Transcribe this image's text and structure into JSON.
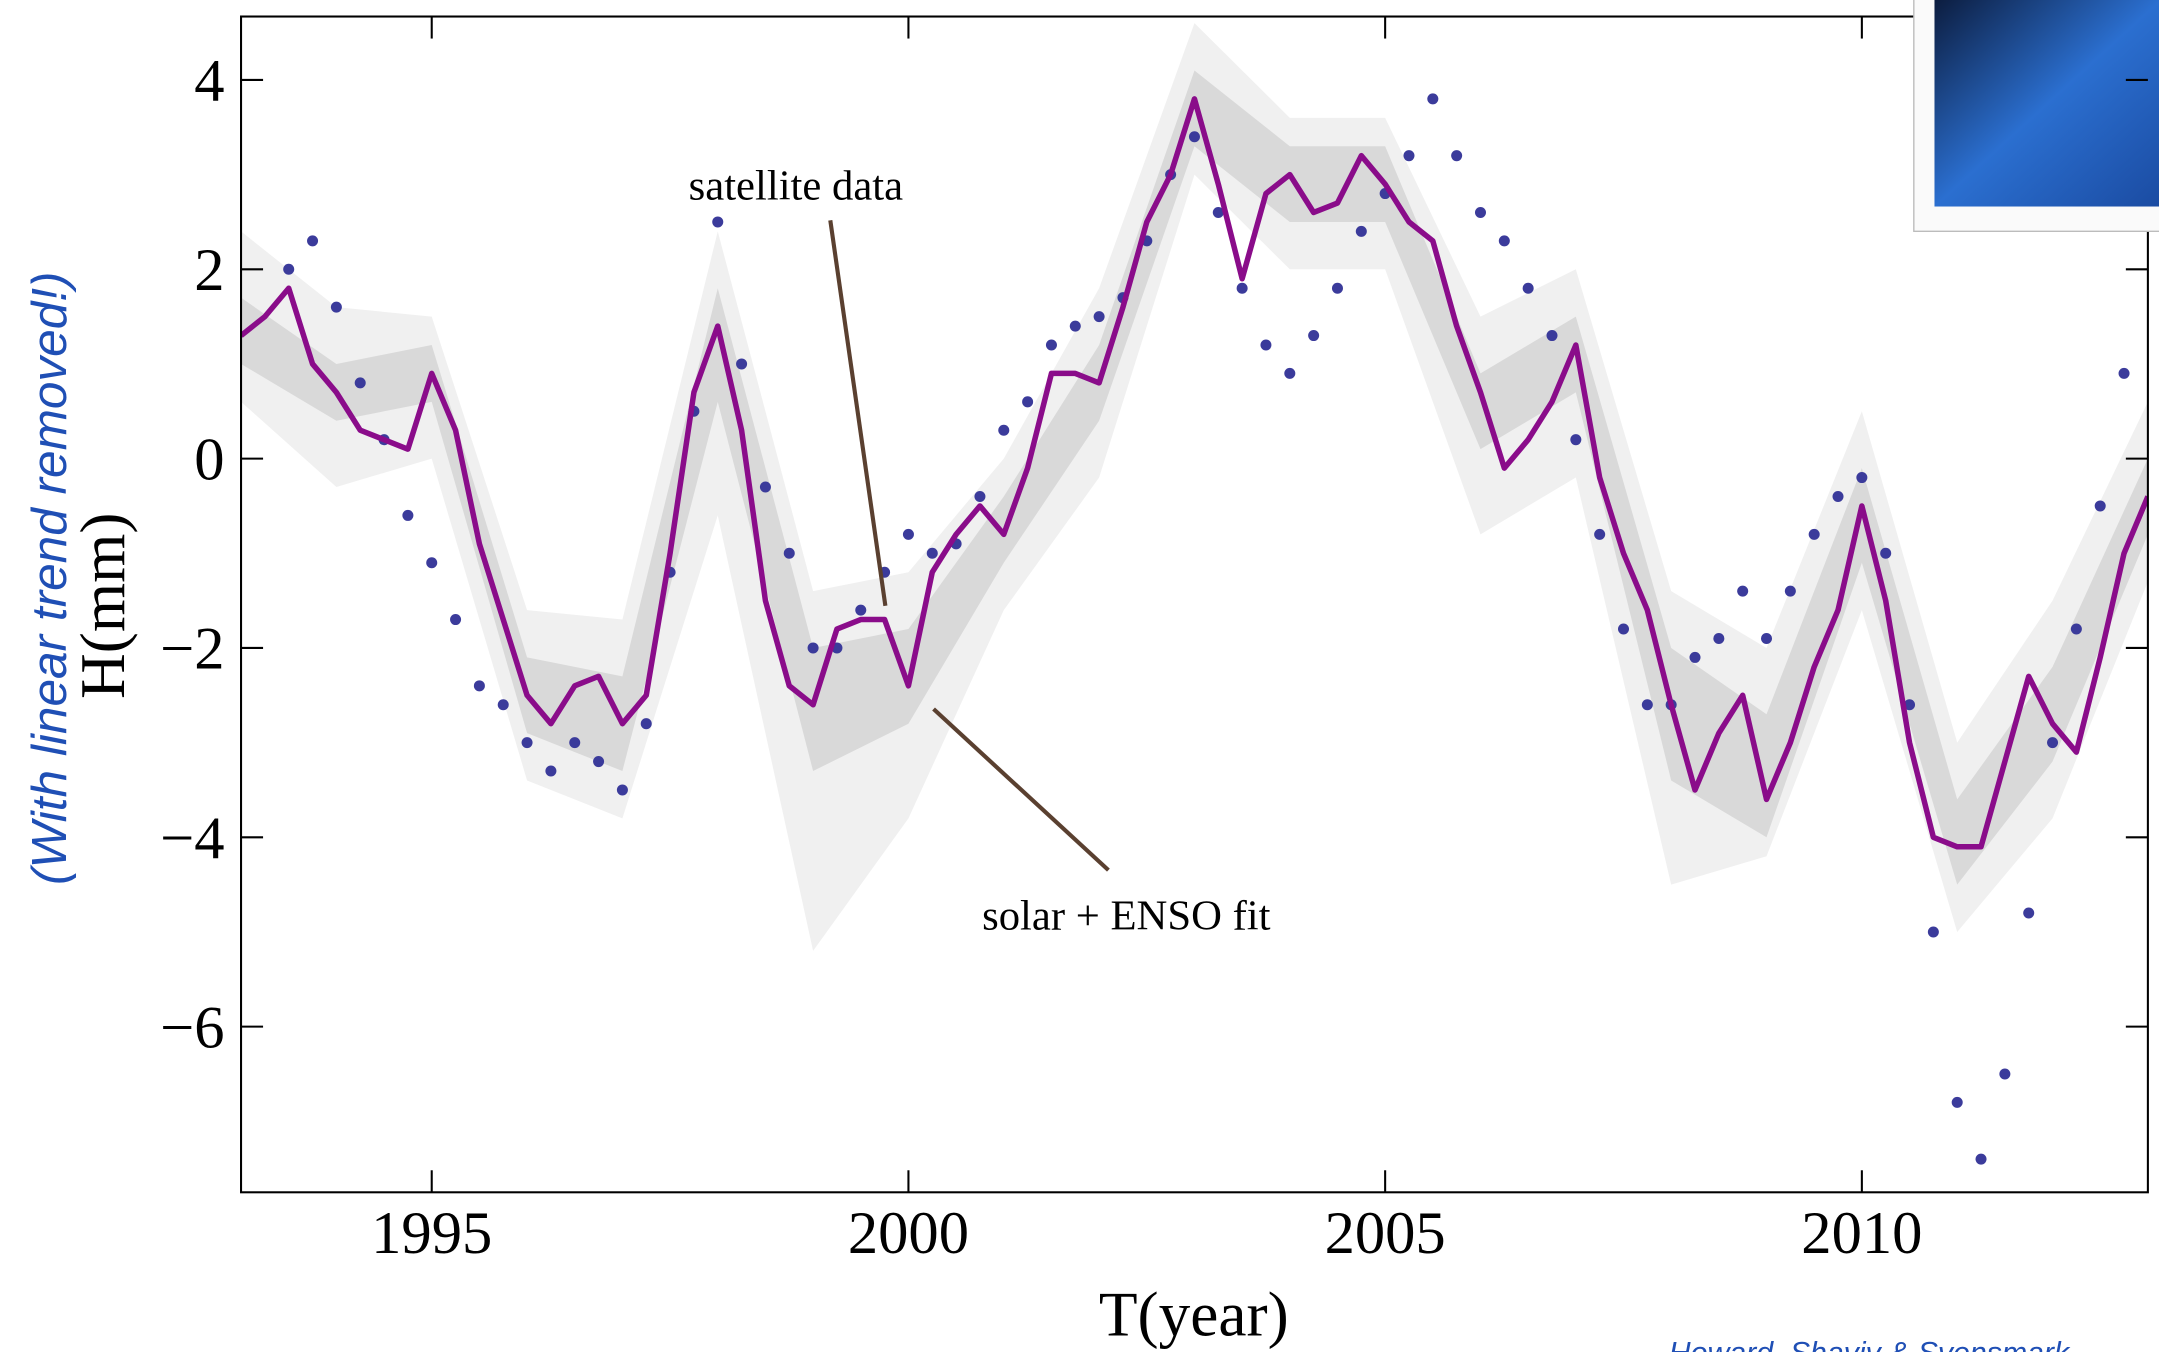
{
  "chart_data": {
    "type": "line",
    "xlabel": "T(year)",
    "ylabel": "H(mm)",
    "side_note": "(With linear trend removed!)",
    "credit": "Howard, Shaviv & Svensmark",
    "xlim": [
      1993,
      2013
    ],
    "ylim": [
      -7.75,
      4.67
    ],
    "xticks": [
      1995,
      2000,
      2005,
      2010
    ],
    "yticks": [
      4,
      2,
      0,
      {
        "value": -2,
        "label": "−2"
      },
      {
        "value": -4,
        "label": "−4"
      },
      {
        "value": -6,
        "label": "−6"
      }
    ],
    "x": [
      1993,
      1993.25,
      1993.5,
      1993.75,
      1994,
      1994.25,
      1994.5,
      1994.75,
      1995,
      1995.25,
      1995.5,
      1995.75,
      1996,
      1996.25,
      1996.5,
      1996.75,
      1997,
      1997.25,
      1997.5,
      1997.75,
      1998,
      1998.25,
      1998.5,
      1998.75,
      1999,
      1999.25,
      1999.5,
      1999.75,
      2000,
      2000.25,
      2000.5,
      2000.75,
      2001,
      2001.25,
      2001.5,
      2001.75,
      2002,
      2002.25,
      2002.5,
      2002.75,
      2003,
      2003.25,
      2003.5,
      2003.75,
      2004,
      2004.25,
      2004.5,
      2004.75,
      2005,
      2005.25,
      2005.5,
      2005.75,
      2006,
      2006.25,
      2006.5,
      2006.75,
      2007,
      2007.25,
      2007.5,
      2007.75,
      2008,
      2008.25,
      2008.5,
      2008.75,
      2009,
      2009.25,
      2009.5,
      2009.75,
      2010,
      2010.25,
      2010.5,
      2010.75,
      2011,
      2011.25,
      2011.5,
      2011.75,
      2012,
      2012.25,
      2012.5,
      2012.75,
      2013
    ],
    "series": [
      {
        "name": "satellite data",
        "marker": "dot",
        "color": "#3b3b9b",
        "values": [
          null,
          null,
          2.0,
          2.3,
          1.6,
          0.8,
          0.2,
          -0.6,
          -1.1,
          -1.7,
          -2.4,
          -2.6,
          -3.0,
          -3.3,
          -3.0,
          -3.2,
          -3.5,
          -2.8,
          -1.2,
          0.5,
          2.5,
          1.0,
          -0.3,
          -1.0,
          -2.0,
          -2.0,
          -1.6,
          -1.2,
          -0.8,
          -1.0,
          -0.9,
          -0.4,
          0.3,
          0.6,
          1.2,
          1.4,
          1.5,
          1.7,
          2.3,
          3.0,
          3.4,
          2.6,
          1.8,
          1.2,
          0.9,
          1.3,
          1.8,
          2.4,
          2.8,
          3.2,
          3.8,
          3.2,
          2.6,
          2.3,
          1.8,
          1.3,
          0.2,
          -0.8,
          -1.8,
          -2.6,
          -2.6,
          -2.1,
          -1.9,
          -1.4,
          -1.9,
          -1.4,
          -0.8,
          -0.4,
          -0.2,
          -1.0,
          -2.6,
          -5.0,
          -6.8,
          -7.4,
          -6.5,
          -4.8,
          -3.0,
          -1.8,
          -0.5,
          0.9,
          null
        ]
      },
      {
        "name": "solar + ENSO fit",
        "marker": "line",
        "color": "#8a0c8a",
        "values": [
          1.3,
          1.5,
          1.8,
          1.0,
          0.7,
          0.3,
          0.2,
          0.1,
          0.9,
          0.3,
          -0.9,
          -1.7,
          -2.5,
          -2.8,
          -2.4,
          -2.3,
          -2.8,
          -2.5,
          -1.0,
          0.7,
          1.4,
          0.3,
          -1.5,
          -2.4,
          -2.6,
          -1.8,
          -1.7,
          -1.7,
          -2.4,
          -1.2,
          -0.8,
          -0.5,
          -0.8,
          -0.1,
          0.9,
          0.9,
          0.8,
          1.6,
          2.5,
          3.0,
          3.8,
          2.9,
          1.9,
          2.8,
          3.0,
          2.6,
          2.7,
          3.2,
          2.9,
          2.5,
          2.3,
          1.4,
          0.7,
          -0.1,
          0.2,
          0.6,
          1.2,
          -0.2,
          -1.0,
          -1.6,
          -2.6,
          -3.5,
          -2.9,
          -2.5,
          -3.6,
          -3.0,
          -2.2,
          -1.6,
          -0.5,
          -1.5,
          -3.0,
          -4.0,
          -4.1,
          -4.1,
          -3.2,
          -2.3,
          -2.8,
          -3.1,
          -2.1,
          -1.0,
          -0.4
        ]
      }
    ],
    "bands": [
      {
        "color": "#f0f0f0",
        "x": [
          1993,
          1994,
          1995,
          1996,
          1997,
          1998,
          1999,
          2000,
          2001,
          2002,
          2003,
          2004,
          2005,
          2006,
          2007,
          2008,
          2009,
          2010,
          2011,
          2012,
          2013
        ],
        "upper": [
          2.4,
          1.6,
          1.5,
          -1.6,
          -1.7,
          2.4,
          -1.4,
          -1.2,
          0.0,
          1.8,
          4.6,
          3.6,
          3.6,
          1.5,
          2.0,
          -1.4,
          -2.0,
          0.5,
          -3.0,
          -1.5,
          0.6
        ],
        "lower": [
          0.6,
          -0.3,
          0.0,
          -3.4,
          -3.8,
          -0.6,
          -5.2,
          -3.8,
          -1.6,
          -0.2,
          3.0,
          2.0,
          2.0,
          -0.8,
          -0.2,
          -4.5,
          -4.2,
          -1.6,
          -5.0,
          -3.8,
          -1.3
        ]
      },
      {
        "color": "#d9d9d9",
        "x": [
          1993,
          1994,
          1995,
          1996,
          1997,
          1998,
          1999,
          2000,
          2001,
          2002,
          2003,
          2004,
          2005,
          2006,
          2007,
          2008,
          2009,
          2010,
          2011,
          2012,
          2013
        ],
        "upper": [
          1.7,
          1.0,
          1.2,
          -2.1,
          -2.3,
          1.8,
          -2.0,
          -1.8,
          -0.4,
          1.2,
          4.1,
          3.3,
          3.3,
          0.9,
          1.5,
          -2.0,
          -2.7,
          -0.1,
          -3.6,
          -2.2,
          0.0
        ],
        "lower": [
          1.0,
          0.4,
          0.6,
          -2.9,
          -3.3,
          0.6,
          -3.3,
          -2.8,
          -1.1,
          0.4,
          3.3,
          2.5,
          2.5,
          0.1,
          0.7,
          -3.4,
          -4.0,
          -1.1,
          -4.5,
          -3.2,
          -0.8
        ]
      }
    ]
  }
}
